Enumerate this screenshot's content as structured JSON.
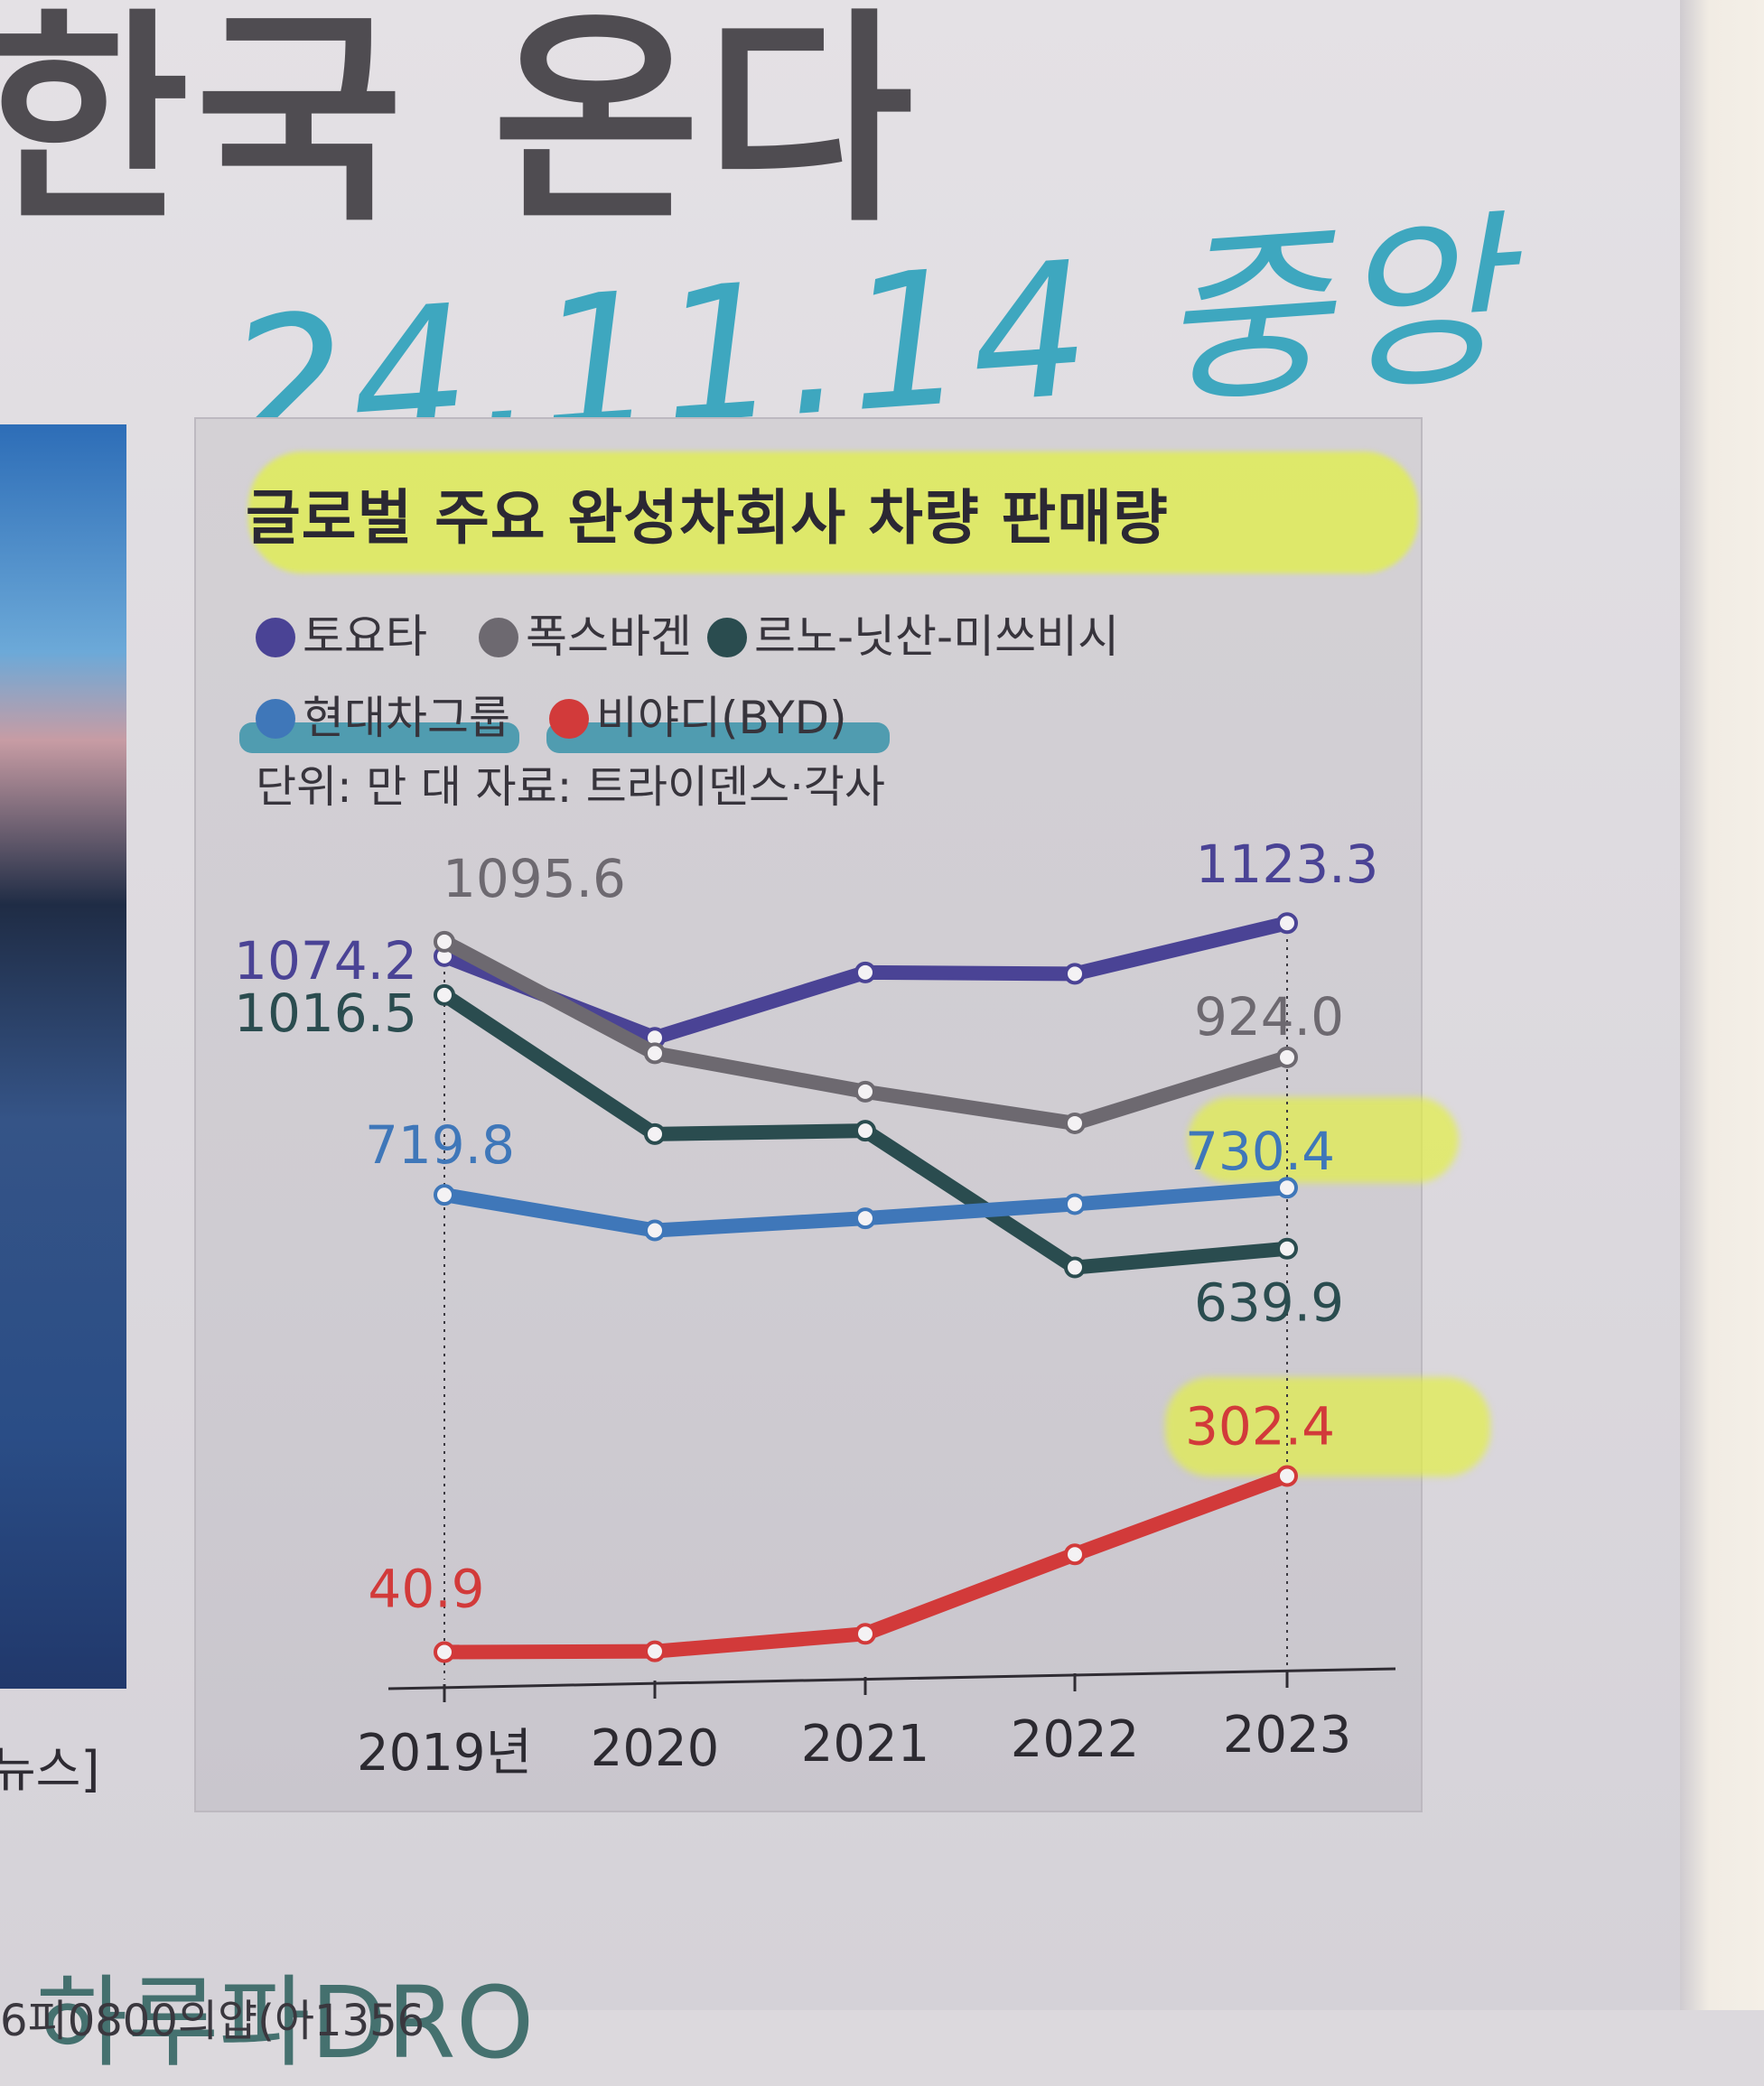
{
  "page": {
    "headline": "한국 온다",
    "handwritten_note": "24.11.14 중앙",
    "left_caption": "뉴스]",
    "bottom_fragment": "6피0800의얍(아1356"
  },
  "chart_data": {
    "type": "line",
    "title": "글로벌 주요 완성차회사 차량 판매량",
    "unit_note": "단위: 만 대  자료: 트라이덴스·각사",
    "categories": [
      "2019년",
      "2020",
      "2021",
      "2022",
      "2023"
    ],
    "series": [
      {
        "name": "토요타",
        "color": "#4a4395",
        "values": [
          1074.2,
          953,
          1050,
          1048,
          1123.3
        ],
        "labels": {
          "first": "1074.2",
          "last": "1123.3"
        }
      },
      {
        "name": "폭스바겐",
        "color": "#6d6970",
        "values": [
          1095.6,
          930,
          873,
          826,
          924.0
        ],
        "labels": {
          "first": "1095.6",
          "last": "924.0"
        }
      },
      {
        "name": "르노-닛산-미쓰비시",
        "color": "#2a4c4f",
        "values": [
          1016.5,
          810,
          815,
          612,
          639.9
        ],
        "labels": {
          "first": "1016.5",
          "last": "639.9"
        }
      },
      {
        "name": "현대차그룹",
        "color": "#3f77b9",
        "values": [
          719.8,
          667,
          685,
          706,
          730.4
        ],
        "labels": {
          "first": "719.8",
          "last": "730.4"
        }
      },
      {
        "name": "비야디(BYD)",
        "color": "#d23a3a",
        "values": [
          40.9,
          42,
          68,
          186,
          302.4
        ],
        "labels": {
          "first": "40.9",
          "last": "302.4"
        }
      }
    ],
    "legend_rows": [
      [
        "토요타",
        "폭스바겐",
        "르노-닛산-미쓰비시"
      ],
      [
        "현대차그룹",
        "비야디(BYD)"
      ]
    ],
    "ylim": [
      0,
      1200
    ],
    "grid": false,
    "legend_position": "top-left"
  }
}
